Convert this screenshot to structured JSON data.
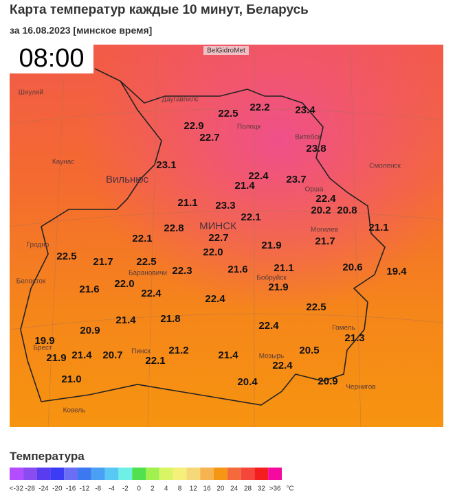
{
  "header": {
    "title": "Карта температур каждые 10 минут, Беларусь",
    "subtitle": "за 16.08.2023 [минское время]",
    "time": "08:00",
    "source": "BelGidroMet"
  },
  "cities": [
    "МИНСК",
    "Вильнюс",
    "Каунас",
    "Шяуляй",
    "Даугавпилс",
    "Полоцк",
    "Витебск",
    "Смоленск",
    "Орша",
    "Могилев",
    "Гродно",
    "Белосток",
    "Барановичи",
    "Бобруйск",
    "Гомель",
    "Пинск",
    "Мозырь",
    "Брест",
    "Ковель",
    "Чернигов"
  ],
  "temperatures": [
    "22.2",
    "23.4",
    "22.5",
    "22.9",
    "22.7",
    "23.8",
    "23.1",
    "22.4",
    "23.7",
    "21.4",
    "22.4",
    "21.1",
    "23.3",
    "20.2",
    "20.8",
    "22.1",
    "21.1",
    "22.8",
    "22.1",
    "22.7",
    "21.9",
    "21.7",
    "22.5",
    "22.0",
    "21.7",
    "22.5",
    "21.6",
    "21.1",
    "20.6",
    "19.4",
    "22.3",
    "22.0",
    "21.6",
    "21.9",
    "22.4",
    "22.4",
    "22.5",
    "21.4",
    "21.8",
    "22.4",
    "20.9",
    "21.3",
    "19.9",
    "21.4",
    "20.7",
    "21.2",
    "20.5",
    "22.1",
    "21.9",
    "21.4",
    "22.4",
    "21.0",
    "20.9",
    "20.4"
  ],
  "legend": {
    "title": "Температура",
    "labels": [
      "<-32",
      "-28",
      "-24",
      "-20",
      "-16",
      "-12",
      "-8",
      "-4",
      "-2",
      "0",
      "2",
      "4",
      "8",
      "12",
      "16",
      "20",
      "24",
      "28",
      "32",
      ">36"
    ],
    "unit": "°C",
    "colors": [
      "#b44cff",
      "#8a4cf0",
      "#5a3cf0",
      "#3c3cf5",
      "#6a6ef5",
      "#3c78f0",
      "#4aa0f5",
      "#5ac8f5",
      "#6ef0e6",
      "#50e050",
      "#a0f050",
      "#d8f566",
      "#f5f07a",
      "#f5d878",
      "#f5b450",
      "#f59614",
      "#f56a3c",
      "#f5463c",
      "#f51e1e",
      "#f50aa0"
    ]
  }
}
